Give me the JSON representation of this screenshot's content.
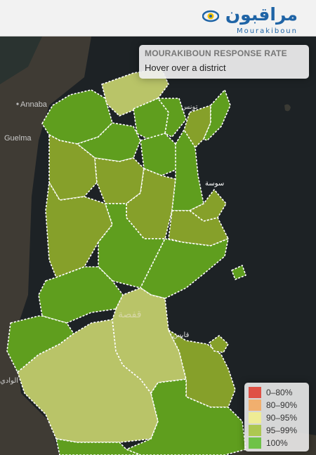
{
  "header": {
    "logo_arabic": "مراقبون",
    "logo_latin": "Mourakiboun"
  },
  "info_box": {
    "title": "MOURAKIBOUN RESPONSE RATE",
    "subtitle": "Hover over a district"
  },
  "legend": {
    "items": [
      {
        "label": "0–80%",
        "color": "#e03a2b"
      },
      {
        "label": "80–90%",
        "color": "#f6a85c"
      },
      {
        "label": "90–95%",
        "color": "#f2f08a"
      },
      {
        "label": "95–99%",
        "color": "#a5c43a"
      },
      {
        "label": "100%",
        "color": "#5cbd2f"
      }
    ]
  },
  "places": {
    "annaba": "Annaba",
    "guelma": "Guelma",
    "tunis_ar": "تونس",
    "sousse_ar": "سوسة",
    "gafsa_ar": "قفصة",
    "gabes_ar": "قابس",
    "eloued_ar": "الوادي"
  },
  "colors": {
    "level_100": "#5f9e1e",
    "level_95_99": "#86a02a",
    "level_light": "#b9c468",
    "border": "#ffffff",
    "sea": "#1d2225",
    "land": "#3f3b34"
  }
}
